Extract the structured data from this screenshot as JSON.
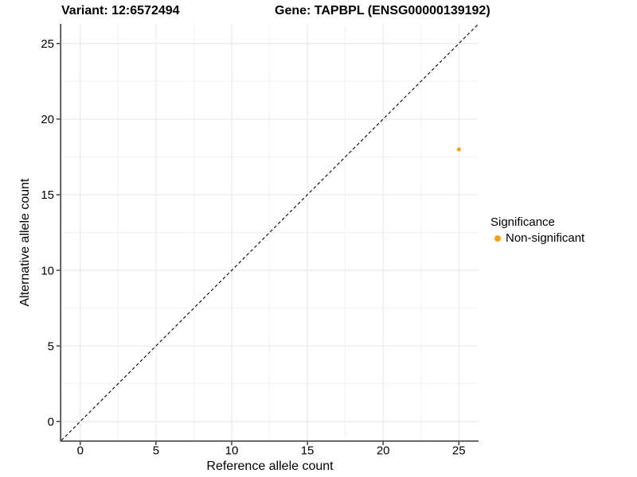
{
  "chart_data": {
    "type": "scatter",
    "title_left": "Variant: 12:6572494",
    "title_right": "Gene: TAPBPL (ENSG00000139192)",
    "xlabel": "Reference allele count",
    "ylabel": "Alternative allele count",
    "xlim": [
      -1.25,
      26.3
    ],
    "ylim": [
      -1.25,
      26.3
    ],
    "xticks": [
      0,
      5,
      10,
      15,
      20,
      25
    ],
    "yticks": [
      0,
      5,
      10,
      15,
      20,
      25
    ],
    "xticks_minor": [
      2.5,
      7.5,
      12.5,
      17.5,
      22.5
    ],
    "yticks_minor": [
      2.5,
      7.5,
      12.5,
      17.5,
      22.5
    ],
    "grid": "major+minor",
    "identity_line": {
      "equation": "y = x",
      "style": "dashed",
      "color": "#000000"
    },
    "series": [
      {
        "name": "Non-significant",
        "color": "#F9A11B",
        "points": [
          {
            "x": 25,
            "y": 18
          }
        ]
      }
    ],
    "legend": {
      "title": "Significance",
      "position": "right",
      "items": [
        {
          "label": "Non-significant",
          "color": "#F9A11B"
        }
      ]
    },
    "colors": {
      "axis_line": "#464646",
      "tick": "#333333",
      "grid_major": "#E6E6E6",
      "grid_minor": "#F2F2F2",
      "text": "#000000",
      "background": "#FFFFFF"
    }
  }
}
